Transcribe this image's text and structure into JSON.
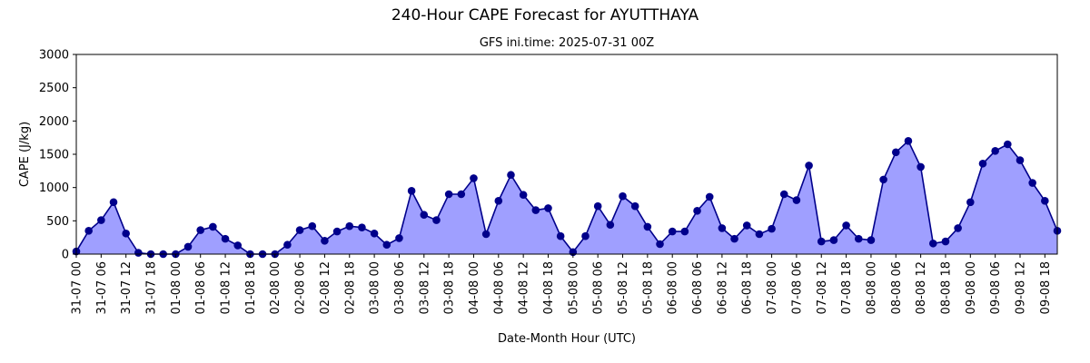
{
  "chart_data": {
    "type": "area",
    "title": "240-Hour CAPE Forecast for AYUTTHAYA",
    "subtitle": "GFS ini.time: 2025-07-31 00Z",
    "xlabel": "Date-Month Hour (UTC)",
    "ylabel": "CAPE (J/kg)",
    "ylim": [
      0,
      3000
    ],
    "yticks": [
      0,
      500,
      1000,
      1500,
      2000,
      2500,
      3000
    ],
    "grid": false,
    "step_hours": 3,
    "x_tick_labels": [
      "31-07 00",
      "31-07 06",
      "31-07 12",
      "31-07 18",
      "01-08 00",
      "01-08 06",
      "01-08 12",
      "01-08 18",
      "02-08 00",
      "02-08 06",
      "02-08 12",
      "02-08 18",
      "03-08 00",
      "03-08 06",
      "03-08 12",
      "03-08 18",
      "04-08 00",
      "04-08 06",
      "04-08 12",
      "04-08 18",
      "05-08 00",
      "05-08 06",
      "05-08 12",
      "05-08 18",
      "06-08 00",
      "06-08 06",
      "06-08 12",
      "06-08 18",
      "07-08 00",
      "07-08 06",
      "07-08 12",
      "07-08 18",
      "08-08 00",
      "08-08 06",
      "08-08 12",
      "08-08 18",
      "09-08 00",
      "09-08 06",
      "09-08 12",
      "09-08 18"
    ],
    "series": [
      {
        "values": [
          40,
          350,
          510,
          780,
          310,
          20,
          0,
          0,
          0,
          110,
          360,
          410,
          230,
          130,
          0,
          0,
          0,
          140,
          360,
          420,
          200,
          340,
          420,
          400,
          310,
          140,
          240,
          950,
          590,
          510,
          900,
          900,
          1140,
          300,
          800,
          1190,
          890,
          660,
          690,
          270,
          30,
          270,
          720,
          440,
          870,
          720,
          410,
          150,
          340,
          340,
          650,
          860,
          390,
          230,
          430,
          300,
          380,
          900,
          810,
          1330,
          190,
          210,
          430,
          230,
          210,
          1120,
          1530,
          1700,
          1310,
          160,
          190,
          390,
          780,
          1360,
          1550,
          1650,
          1410,
          1070,
          800,
          350
        ]
      }
    ],
    "colors": {
      "fill": "#9f9fff",
      "line": "#00008b",
      "marker": "#00008b"
    }
  }
}
